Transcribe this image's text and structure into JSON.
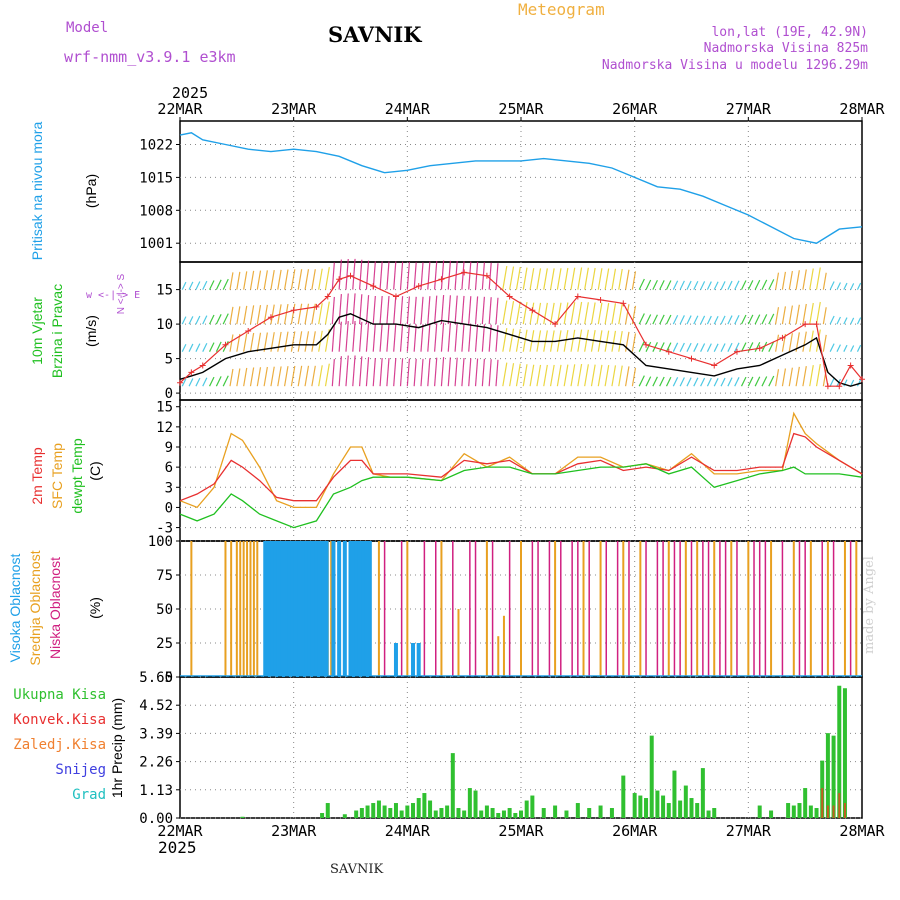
{
  "header": {
    "model_label": "Model",
    "model_name": "wrf-nmm_v3.9.1 e3km",
    "title": "SAVNIK",
    "meteogram": "Meteogram",
    "lonlat": "lon,lat (19E, 42.9N)",
    "altitude": "Nadmorska Visina 825m",
    "model_altitude": "Nadmorska Visina u modelu 1296.29m",
    "year_top": "2025",
    "year_bottom": "2025",
    "footer": "SAVNIK",
    "made_by": "made by Angel"
  },
  "colors": {
    "pressure": "#1fa0e8",
    "wind_speed": "#000000",
    "wind_gust": "#e83030",
    "temp2m": "#e83030",
    "sfc_temp": "#e8a020",
    "dewpt": "#20c020",
    "cloud_high": "#1fa0e8",
    "cloud_mid": "#e8a020",
    "cloud_low": "#d02080",
    "precip_total": "#30c030",
    "precip_conv": "#e83030",
    "precip_frozen": "#f08030",
    "snow": "#4040e0",
    "graupel": "#20c0c0",
    "purple_text": "#b04fd0"
  },
  "chart_data": [
    {
      "type": "line",
      "panel": "pressure",
      "ylabel_main": "Pritisak na nivou mora",
      "unit": "(hPa)",
      "yticks": [
        1001,
        1008,
        1015,
        1022
      ],
      "ylim": [
        997,
        1027
      ],
      "x_days": [
        0,
        0.1,
        0.2,
        0.4,
        0.6,
        0.8,
        1.0,
        1.2,
        1.4,
        1.6,
        1.8,
        2.0,
        2.2,
        2.4,
        2.6,
        2.8,
        3.0,
        3.2,
        3.4,
        3.6,
        3.8,
        4.0,
        4.2,
        4.4,
        4.6,
        4.8,
        5.0,
        5.2,
        5.4,
        5.6,
        5.8,
        6.0
      ],
      "values": [
        1024,
        1024.5,
        1023,
        1022,
        1021,
        1020.5,
        1021,
        1020.5,
        1019.5,
        1017.5,
        1016,
        1016.5,
        1017.5,
        1018,
        1018.5,
        1018.5,
        1018.5,
        1019,
        1018.5,
        1018,
        1017,
        1015,
        1013,
        1012.5,
        1011,
        1009,
        1007,
        1004.5,
        1002,
        1001,
        1004,
        1004.5
      ]
    },
    {
      "type": "line",
      "panel": "wind",
      "ylabel_main": "10m Vjetar",
      "ylabel_sub": "Brzina i Pravac",
      "unit": "(m/s)",
      "compass": "w <-|-> E",
      "compass_ns": "N <-|-> S",
      "yticks": [
        0,
        5,
        10,
        15
      ],
      "ylim": [
        -1,
        19
      ],
      "x_days": [
        0,
        0.1,
        0.2,
        0.4,
        0.6,
        0.8,
        1.0,
        1.2,
        1.3,
        1.4,
        1.5,
        1.7,
        1.9,
        2.1,
        2.3,
        2.5,
        2.7,
        2.9,
        3.1,
        3.3,
        3.5,
        3.7,
        3.9,
        4.1,
        4.3,
        4.5,
        4.7,
        4.9,
        5.1,
        5.3,
        5.5,
        5.6,
        5.7,
        5.8,
        5.9,
        6.0
      ],
      "series": [
        {
          "name": "speed",
          "values": [
            2,
            2.5,
            3,
            5,
            6,
            6.5,
            7,
            7,
            8.5,
            11,
            11.5,
            10,
            10,
            9.5,
            10.5,
            10,
            9.5,
            8.5,
            7.5,
            7.5,
            8,
            7.5,
            7,
            4,
            3.5,
            3,
            2.5,
            3.5,
            4,
            5.5,
            7,
            8,
            3,
            1.5,
            1,
            1.5
          ]
        },
        {
          "name": "gust",
          "values": [
            1.5,
            3,
            4,
            7,
            9,
            11,
            12,
            12.5,
            14,
            16.5,
            17,
            15.5,
            14,
            15.5,
            16.5,
            17.5,
            17,
            14,
            12,
            10,
            14,
            13.5,
            13,
            7,
            6,
            5,
            4,
            6,
            6.5,
            8,
            10,
            10,
            1,
            1,
            4,
            2
          ]
        }
      ]
    },
    {
      "type": "line",
      "panel": "temperature",
      "ylabel_1": "2m Temp",
      "ylabel_2": "SFC Temp",
      "ylabel_3": "dewpt Temp",
      "unit": "(C)",
      "yticks": [
        -3,
        0,
        3,
        6,
        9,
        12,
        15
      ],
      "ylim": [
        -5,
        16
      ],
      "x_days": [
        0,
        0.15,
        0.3,
        0.45,
        0.55,
        0.7,
        0.85,
        1.0,
        1.2,
        1.35,
        1.5,
        1.6,
        1.7,
        1.85,
        2.0,
        2.3,
        2.5,
        2.7,
        2.9,
        3.1,
        3.3,
        3.5,
        3.7,
        3.9,
        4.1,
        4.3,
        4.5,
        4.7,
        4.9,
        5.1,
        5.3,
        5.4,
        5.5,
        5.6,
        5.8,
        6.0
      ],
      "series": [
        {
          "name": "temp2m",
          "values": [
            1,
            2,
            3.5,
            7,
            6,
            4,
            1.5,
            1,
            1,
            4.5,
            7,
            7,
            5,
            5,
            5,
            4.5,
            7,
            6.5,
            7,
            5,
            5,
            6.5,
            7,
            5.5,
            6,
            5.5,
            7.5,
            5.5,
            5.5,
            6,
            6,
            11,
            10.5,
            9,
            7,
            5
          ]
        },
        {
          "name": "sfc_temp",
          "values": [
            1,
            0,
            3,
            11,
            10,
            6,
            1,
            0,
            0,
            5,
            9,
            9,
            5,
            4.5,
            4.5,
            4,
            8,
            6,
            7.5,
            5,
            5,
            7.5,
            7.5,
            6,
            6.5,
            5.5,
            8,
            5,
            5,
            5.5,
            5.5,
            14,
            11,
            9.5,
            7,
            5
          ]
        },
        {
          "name": "dewpt",
          "values": [
            -1,
            -2,
            -1,
            2,
            1,
            -1,
            -2,
            -3,
            -2,
            2,
            3,
            4,
            4.5,
            4.5,
            4.5,
            4,
            5.5,
            6,
            6,
            5,
            5,
            5.5,
            6,
            6,
            6.5,
            5,
            6,
            3,
            4,
            5,
            5.5,
            6,
            5,
            5,
            5,
            4.5
          ]
        }
      ]
    },
    {
      "type": "bar",
      "panel": "clouds",
      "ylabel_1": "Visoka Oblacnost",
      "ylabel_2": "Srednja Oblacnost",
      "ylabel_3": "Niska Oblacnost",
      "unit": "(%)",
      "yticks": [
        0,
        25,
        50,
        75,
        100
      ],
      "ylim": [
        0,
        100
      ],
      "high_cloud_days": [
        0.75,
        0.78,
        0.81,
        0.84,
        0.87,
        0.9,
        0.93,
        0.96,
        0.99,
        1.02,
        1.05,
        1.08,
        1.11,
        1.14,
        1.17,
        1.2,
        1.23,
        1.26,
        1.29,
        1.35,
        1.4,
        1.45,
        1.5,
        1.52,
        1.55,
        1.58,
        1.61,
        1.64,
        1.67,
        1.9,
        2.05,
        2.1
      ],
      "high_cloud_values": [
        100,
        100,
        100,
        100,
        100,
        100,
        100,
        100,
        100,
        100,
        100,
        100,
        100,
        100,
        100,
        100,
        100,
        100,
        100,
        100,
        100,
        100,
        100,
        100,
        100,
        100,
        100,
        100,
        100,
        25,
        25,
        25
      ],
      "mid_cloud_days": [
        0.1,
        0.4,
        0.45,
        0.5,
        0.53,
        0.56,
        0.59,
        0.62,
        0.65,
        0.68,
        1.3,
        1.33,
        1.45,
        1.75,
        2.0,
        2.3,
        2.45,
        2.7,
        2.8,
        2.85,
        3.0,
        3.3,
        3.55,
        3.7,
        3.9,
        4.05,
        4.3,
        4.45,
        4.55,
        4.7,
        4.85,
        5.0,
        5.2,
        5.4,
        5.55,
        5.7,
        5.85,
        5.95
      ],
      "mid_cloud_values": [
        100,
        100,
        100,
        100,
        100,
        100,
        100,
        100,
        100,
        100,
        100,
        100,
        100,
        100,
        100,
        100,
        50,
        100,
        30,
        45,
        100,
        100,
        100,
        100,
        100,
        100,
        100,
        100,
        100,
        100,
        100,
        100,
        100,
        100,
        100,
        100,
        100,
        100
      ],
      "low_cloud_days": [
        1.8,
        1.95,
        2.15,
        2.25,
        2.4,
        2.55,
        2.6,
        2.75,
        2.9,
        3.1,
        3.15,
        3.25,
        3.35,
        3.45,
        3.5,
        3.6,
        3.75,
        3.85,
        3.95,
        4.1,
        4.2,
        4.25,
        4.35,
        4.4,
        4.5,
        4.6,
        4.65,
        4.75,
        4.8,
        4.9,
        5.05,
        5.1,
        5.15,
        5.3,
        5.45,
        5.5,
        5.65,
        5.75,
        5.9
      ],
      "low_cloud_values": [
        100,
        100,
        100,
        100,
        100,
        100,
        100,
        100,
        100,
        100,
        100,
        100,
        100,
        100,
        100,
        100,
        100,
        100,
        100,
        100,
        100,
        100,
        100,
        100,
        100,
        100,
        100,
        100,
        100,
        100,
        100,
        100,
        100,
        100,
        100,
        100,
        100,
        100,
        100
      ]
    },
    {
      "type": "bar",
      "panel": "precipitation",
      "legend": [
        "Ukupna Kisa",
        "Konvek.Kisa",
        "Zaledj.Kisa",
        "Snijeg",
        "Grad"
      ],
      "ylabel": "1hr Precip (mm)",
      "yticks": [
        0,
        1.13,
        2.26,
        3.39,
        4.52,
        5.65
      ],
      "ylim": [
        0,
        5.65
      ],
      "categories": [
        "22MAR",
        "23MAR",
        "24MAR",
        "25MAR",
        "26MAR",
        "27MAR",
        "28MAR"
      ],
      "x_days": [
        0.55,
        1.25,
        1.3,
        1.45,
        1.55,
        1.6,
        1.65,
        1.7,
        1.75,
        1.8,
        1.85,
        1.9,
        1.95,
        2.0,
        2.05,
        2.1,
        2.15,
        2.2,
        2.25,
        2.3,
        2.35,
        2.4,
        2.45,
        2.5,
        2.55,
        2.6,
        2.65,
        2.7,
        2.75,
        2.8,
        2.85,
        2.9,
        2.95,
        3.0,
        3.05,
        3.1,
        3.2,
        3.3,
        3.4,
        3.5,
        3.6,
        3.7,
        3.8,
        3.9,
        4.0,
        4.05,
        4.1,
        4.15,
        4.2,
        4.25,
        4.3,
        4.35,
        4.4,
        4.45,
        4.5,
        4.55,
        4.6,
        4.65,
        4.7,
        5.1,
        5.2,
        5.35,
        5.4,
        5.45,
        5.5,
        5.55,
        5.6,
        5.65,
        5.7,
        5.75,
        5.8,
        5.85
      ],
      "total": [
        0.05,
        0.2,
        0.6,
        0.15,
        0.3,
        0.4,
        0.5,
        0.6,
        0.7,
        0.5,
        0.4,
        0.6,
        0.3,
        0.5,
        0.6,
        0.8,
        1.0,
        0.7,
        0.3,
        0.4,
        0.5,
        2.6,
        0.4,
        0.3,
        1.2,
        1.1,
        0.3,
        0.5,
        0.4,
        0.2,
        0.3,
        0.4,
        0.2,
        0.3,
        0.7,
        0.9,
        0.4,
        0.5,
        0.3,
        0.6,
        0.4,
        0.5,
        0.4,
        1.7,
        1.0,
        0.9,
        0.8,
        3.3,
        1.1,
        0.9,
        0.6,
        1.9,
        0.7,
        1.3,
        0.8,
        0.6,
        2.0,
        0.3,
        0.4,
        0.5,
        0.3,
        0.6,
        0.5,
        0.6,
        1.2,
        0.5,
        0.4,
        2.3,
        3.4,
        3.3,
        5.3,
        5.2
      ],
      "convective": [
        0,
        0,
        0,
        0,
        0,
        0,
        0,
        0,
        0,
        0,
        0,
        0,
        0,
        0,
        0,
        0,
        0,
        0,
        0,
        0,
        0,
        0,
        0,
        0,
        0,
        0,
        0,
        0,
        0,
        0,
        0,
        0,
        0,
        0,
        0,
        0,
        0,
        0,
        0,
        0,
        0,
        0,
        0,
        0,
        0,
        0,
        0,
        0,
        0,
        0,
        0,
        0,
        0,
        0,
        0,
        0,
        0,
        0,
        0,
        0,
        0,
        0,
        0,
        0,
        0,
        0,
        0,
        1.2,
        0.5,
        0.5,
        1.0,
        0.6
      ]
    }
  ]
}
